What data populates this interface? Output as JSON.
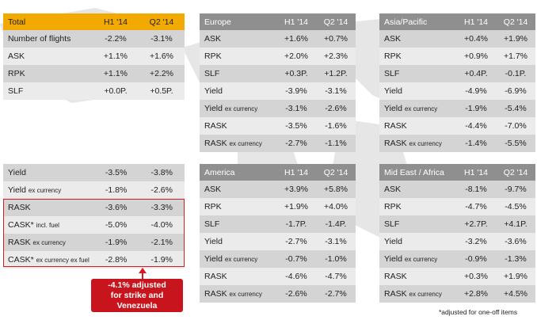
{
  "total_top": {
    "header": [
      "Total",
      "H1 '14",
      "Q2 '14"
    ],
    "rows": [
      {
        "label": "Number of flights",
        "h1": "-2.2%",
        "q2": "-3.1%"
      },
      {
        "label": "ASK",
        "h1": "+1.1%",
        "q2": "+1.6%"
      },
      {
        "label": "RPK",
        "h1": "+1.1%",
        "q2": "+2.2%"
      },
      {
        "label": "SLF",
        "h1": "+0.0P.",
        "q2": "+0.5P."
      }
    ]
  },
  "total_bottom": {
    "rows": [
      {
        "label": "Yield",
        "suffix": "",
        "h1": "-3.5%",
        "q2": "-3.8%"
      },
      {
        "label": "Yield",
        "suffix": "ex currency",
        "h1": "-1.8%",
        "q2": "-2.6%"
      },
      {
        "label": "RASK",
        "suffix": "",
        "h1": "-3.6%",
        "q2": "-3.3%"
      },
      {
        "label": "CASK*",
        "suffix": "incl. fuel",
        "h1": "-5.0%",
        "q2": "-4.0%"
      },
      {
        "label": "RASK",
        "suffix": "ex currency",
        "h1": "-1.9%",
        "q2": "-2.1%"
      },
      {
        "label": "CASK*",
        "suffix": "ex currency ex fuel",
        "h1": "-2.8%",
        "q2": "-1.9%"
      }
    ]
  },
  "europe": {
    "header": [
      "Europe",
      "H1 '14",
      "Q2 '14"
    ],
    "rows": [
      {
        "label": "ASK",
        "suffix": "",
        "h1": "+1.6%",
        "q2": "+0.7%"
      },
      {
        "label": "RPK",
        "suffix": "",
        "h1": "+2.0%",
        "q2": "+2.3%"
      },
      {
        "label": "SLF",
        "suffix": "",
        "h1": "+0.3P.",
        "q2": "+1.2P."
      },
      {
        "label": "Yield",
        "suffix": "",
        "h1": "-3.9%",
        "q2": "-3.1%"
      },
      {
        "label": "Yield",
        "suffix": "ex currency",
        "h1": "-3.1%",
        "q2": "-2.6%"
      },
      {
        "label": "RASK",
        "suffix": "",
        "h1": "-3.5%",
        "q2": "-1.6%"
      },
      {
        "label": "RASK",
        "suffix": "ex currency",
        "h1": "-2.7%",
        "q2": "-1.1%"
      }
    ]
  },
  "asia": {
    "header": [
      "Asia/Pacific",
      "H1 '14",
      "Q2 '14"
    ],
    "rows": [
      {
        "label": "ASK",
        "suffix": "",
        "h1": "+0.4%",
        "q2": "+1.9%"
      },
      {
        "label": "RPK",
        "suffix": "",
        "h1": "+0.9%",
        "q2": "+1.7%"
      },
      {
        "label": "SLF",
        "suffix": "",
        "h1": "+0.4P.",
        "q2": "-0.1P."
      },
      {
        "label": "Yield",
        "suffix": "",
        "h1": "-4.9%",
        "q2": "-6.9%"
      },
      {
        "label": "Yield",
        "suffix": "ex currency",
        "h1": "-1.9%",
        "q2": "-5.4%"
      },
      {
        "label": "RASK",
        "suffix": "",
        "h1": "-4.4%",
        "q2": "-7.0%"
      },
      {
        "label": "RASK",
        "suffix": "ex currency",
        "h1": "-1.4%",
        "q2": "-5.5%"
      }
    ]
  },
  "america": {
    "header": [
      "America",
      "H1 '14",
      "Q2 '14"
    ],
    "rows": [
      {
        "label": "ASK",
        "suffix": "",
        "h1": "+3.9%",
        "q2": "+5.8%"
      },
      {
        "label": "RPK",
        "suffix": "",
        "h1": "+1.9%",
        "q2": "+4.0%"
      },
      {
        "label": "SLF",
        "suffix": "",
        "h1": "-1.7P.",
        "q2": "-1.4P."
      },
      {
        "label": "Yield",
        "suffix": "",
        "h1": "-2.7%",
        "q2": "-3.1%"
      },
      {
        "label": "Yield",
        "suffix": "ex currency",
        "h1": "-0.7%",
        "q2": "-1.0%"
      },
      {
        "label": "RASK",
        "suffix": "",
        "h1": "-4.6%",
        "q2": "-4.7%"
      },
      {
        "label": "RASK",
        "suffix": "ex currency",
        "h1": "-2.6%",
        "q2": "-2.7%"
      }
    ]
  },
  "mideast": {
    "header": [
      "Mid East / Africa",
      "H1 '14",
      "Q2 '14"
    ],
    "rows": [
      {
        "label": "ASK",
        "suffix": "",
        "h1": "-8.1%",
        "q2": "-9.7%"
      },
      {
        "label": "RPK",
        "suffix": "",
        "h1": "-4.7%",
        "q2": "-4.5%"
      },
      {
        "label": "SLF",
        "suffix": "",
        "h1": "+2.7P.",
        "q2": "+4.1P."
      },
      {
        "label": "Yield",
        "suffix": "",
        "h1": "-3.2%",
        "q2": "-3.6%"
      },
      {
        "label": "Yield",
        "suffix": "ex currency",
        "h1": "-0.9%",
        "q2": "-1.3%"
      },
      {
        "label": "RASK",
        "suffix": "",
        "h1": "+0.3%",
        "q2": "+1.9%"
      },
      {
        "label": "RASK",
        "suffix": "ex currency",
        "h1": "+2.8%",
        "q2": "+4.5%"
      }
    ]
  },
  "callout": {
    "line1": "-4.1% adjusted",
    "line2": "for strike and",
    "line3": "Venezuela"
  },
  "footnote": "*adjusted for one-off items",
  "colors": {
    "orange_header": "#f2a900",
    "gray_header": "#8f8f8f",
    "accent_red": "#d71920"
  }
}
